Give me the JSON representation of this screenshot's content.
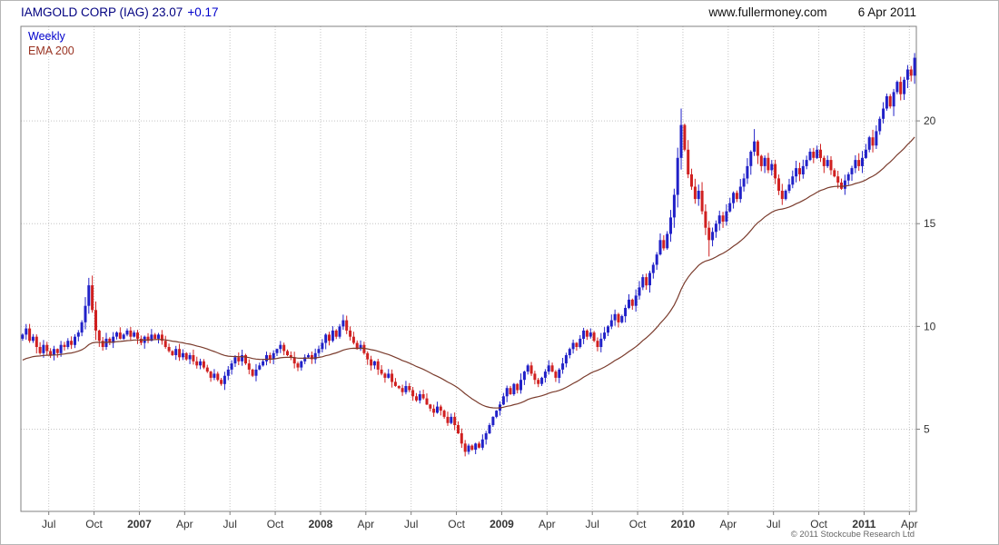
{
  "header": {
    "title": "IAMGOLD CORP (IAG) 23.07",
    "change": "+0.17",
    "website": "www.fullermoney.com",
    "date": "6 Apr 2011"
  },
  "legend": {
    "timeframe": "Weekly",
    "ema_label": "EMA 200"
  },
  "footer": {
    "copyright": "© 2011 Stockcube Research Ltd"
  },
  "colors": {
    "up": "#2121c8",
    "down": "#d02020",
    "ema": "#7a3b2c",
    "grid": "#c4c4c4",
    "border": "#808080",
    "axis_text": "#333333",
    "title": "#000080",
    "change": "#0000cc"
  },
  "chart_data": {
    "type": "candlestick",
    "title": "IAMGOLD CORP (IAG)",
    "interval": "weekly",
    "last_price": 23.07,
    "change": 0.17,
    "date": "6 Apr 2011",
    "legend_position": "top-left",
    "grid": "dotted",
    "y_axis": {
      "min": 1,
      "max": 24.6,
      "gridlines": [
        5,
        10,
        15,
        20
      ],
      "side": "right"
    },
    "x_axis": {
      "labels": [
        {
          "text": "Jul",
          "week": 8
        },
        {
          "text": "Oct",
          "week": 21
        },
        {
          "text": "2007",
          "week": 34,
          "year": true
        },
        {
          "text": "Apr",
          "week": 47
        },
        {
          "text": "Jul",
          "week": 60
        },
        {
          "text": "Oct",
          "week": 73
        },
        {
          "text": "2008",
          "week": 86,
          "year": true
        },
        {
          "text": "Apr",
          "week": 99
        },
        {
          "text": "Jul",
          "week": 112
        },
        {
          "text": "Oct",
          "week": 125
        },
        {
          "text": "2009",
          "week": 138,
          "year": true
        },
        {
          "text": "Apr",
          "week": 151
        },
        {
          "text": "Jul",
          "week": 164
        },
        {
          "text": "Oct",
          "week": 177
        },
        {
          "text": "2010",
          "week": 190,
          "year": true
        },
        {
          "text": "Apr",
          "week": 203
        },
        {
          "text": "Jul",
          "week": 216
        },
        {
          "text": "Oct",
          "week": 229
        },
        {
          "text": "2011",
          "week": 242,
          "year": true
        },
        {
          "text": "Apr",
          "week": 255
        }
      ]
    },
    "first_open": 9.4,
    "open_rule": "previous_close",
    "closes": [
      9.6,
      9.9,
      9.3,
      9.5,
      9.0,
      8.7,
      9.1,
      8.8,
      8.6,
      8.9,
      8.7,
      9.1,
      9.0,
      9.3,
      9.1,
      9.5,
      9.7,
      10.2,
      11.0,
      12.0,
      10.8,
      9.8,
      9.3,
      9.0,
      9.4,
      9.2,
      9.5,
      9.7,
      9.4,
      9.6,
      9.8,
      9.5,
      9.7,
      9.4,
      9.2,
      9.5,
      9.3,
      9.6,
      9.4,
      9.6,
      9.3,
      9.0,
      8.8,
      8.6,
      8.9,
      8.5,
      8.7,
      8.4,
      8.6,
      8.3,
      8.1,
      8.3,
      8.0,
      7.8,
      7.5,
      7.7,
      7.4,
      7.2,
      7.6,
      7.9,
      8.2,
      8.5,
      8.3,
      8.6,
      8.2,
      7.9,
      7.6,
      7.9,
      8.1,
      8.3,
      8.6,
      8.4,
      8.7,
      8.9,
      9.1,
      8.8,
      8.6,
      8.5,
      8.2,
      8.0,
      8.3,
      8.5,
      8.6,
      8.4,
      8.7,
      8.9,
      9.2,
      9.6,
      9.3,
      9.8,
      9.5,
      10.0,
      10.3,
      9.8,
      9.5,
      9.2,
      8.9,
      9.1,
      8.7,
      8.4,
      8.1,
      8.3,
      7.9,
      7.7,
      7.5,
      7.7,
      7.3,
      7.1,
      7.0,
      6.8,
      7.1,
      6.9,
      6.6,
      6.4,
      6.7,
      6.5,
      6.2,
      6.0,
      5.8,
      6.1,
      5.9,
      5.6,
      5.3,
      5.6,
      5.2,
      4.8,
      4.3,
      3.9,
      4.2,
      4.0,
      4.3,
      4.1,
      4.5,
      4.8,
      5.2,
      5.6,
      5.9,
      6.2,
      6.6,
      7.0,
      6.7,
      7.2,
      6.9,
      7.4,
      7.8,
      8.1,
      7.7,
      7.4,
      7.2,
      7.5,
      7.8,
      8.1,
      7.8,
      7.5,
      7.9,
      8.2,
      8.6,
      8.9,
      9.2,
      9.0,
      9.4,
      9.8,
      9.5,
      9.7,
      9.3,
      9.0,
      9.4,
      9.7,
      10.0,
      10.3,
      10.6,
      10.2,
      10.5,
      10.9,
      11.3,
      11.0,
      11.5,
      11.9,
      12.4,
      12.0,
      12.6,
      13.0,
      13.5,
      14.2,
      13.8,
      14.5,
      15.3,
      16.4,
      18.2,
      19.8,
      18.6,
      17.4,
      16.8,
      16.2,
      16.6,
      15.6,
      14.8,
      14.2,
      14.6,
      15.0,
      15.4,
      15.1,
      15.6,
      16.0,
      16.5,
      16.2,
      16.8,
      17.2,
      17.8,
      18.5,
      19.0,
      18.3,
      17.8,
      18.2,
      17.6,
      17.9,
      17.2,
      16.6,
      16.2,
      16.6,
      16.9,
      17.3,
      17.7,
      17.4,
      17.8,
      18.1,
      18.5,
      18.2,
      18.6,
      18.2,
      17.8,
      18.1,
      17.6,
      17.3,
      17.0,
      16.7,
      17.1,
      17.4,
      17.7,
      18.1,
      17.8,
      18.2,
      18.6,
      19.2,
      18.8,
      19.5,
      20.1,
      20.6,
      21.2,
      20.7,
      21.4,
      21.9,
      21.3,
      22.0,
      22.5,
      22.2,
      23.07
    ],
    "overrides": {
      "19": {
        "high": 12.35
      },
      "92": {
        "high": 10.45
      },
      "127": {
        "low": 3.7
      },
      "189": {
        "high": 20.6
      },
      "197": {
        "low": 13.4
      },
      "210": {
        "high": 19.6
      },
      "256": {
        "high": 23.3
      }
    },
    "ema": {
      "label": "EMA 200",
      "period": 200,
      "period_unit": "days",
      "seed": 8.3
    }
  }
}
